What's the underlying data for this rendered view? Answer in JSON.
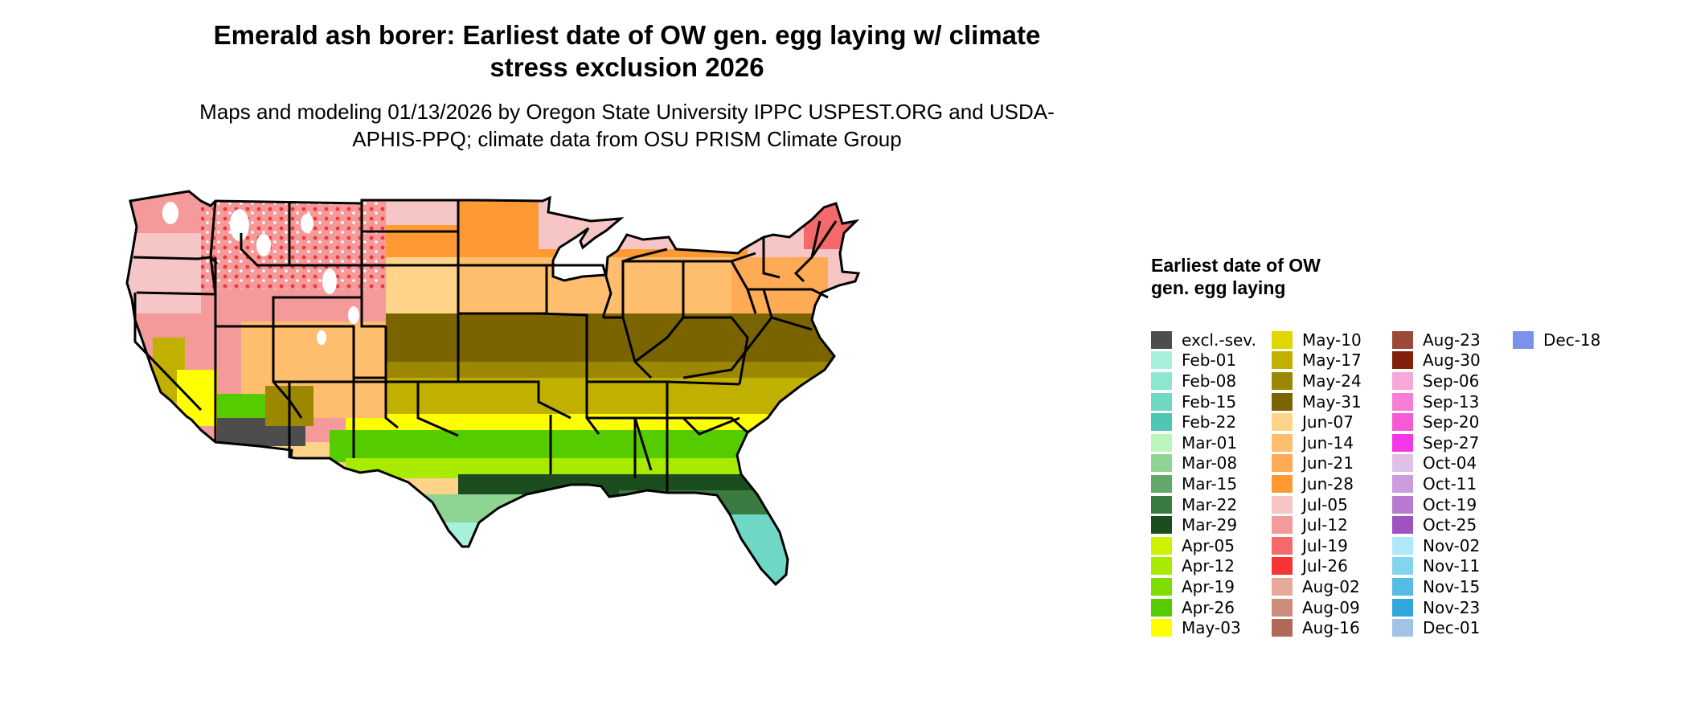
{
  "title": "Emerald ash borer: Earliest date of OW gen. egg laying w/ climate stress exclusion 2026",
  "subtitle": "Maps and modeling 01/13/2026 by Oregon State University IPPC USPEST.ORG and USDA-APHIS-PPQ; climate data from OSU PRISM Climate Group",
  "map": {
    "region": "Conterminous United States",
    "legend_title": "Earliest date of OW gen. egg laying",
    "legend": [
      {
        "label": "excl.-sev.",
        "color": "#4d4d4d"
      },
      {
        "label": "Feb-01",
        "color": "#a6f0dc"
      },
      {
        "label": "Feb-08",
        "color": "#8ee6d0"
      },
      {
        "label": "Feb-15",
        "color": "#6fd8c4"
      },
      {
        "label": "Feb-22",
        "color": "#4ec6b4"
      },
      {
        "label": "Mar-01",
        "color": "#b8f6bc"
      },
      {
        "label": "Mar-08",
        "color": "#8ed492"
      },
      {
        "label": "Mar-15",
        "color": "#62a868"
      },
      {
        "label": "Mar-22",
        "color": "#3b7a40"
      },
      {
        "label": "Mar-29",
        "color": "#1b4d1e"
      },
      {
        "label": "Apr-05",
        "color": "#ccf200"
      },
      {
        "label": "Apr-12",
        "color": "#a8ea00"
      },
      {
        "label": "Apr-19",
        "color": "#7ddc00"
      },
      {
        "label": "Apr-26",
        "color": "#55cc00"
      },
      {
        "label": "May-03",
        "color": "#ffff00"
      },
      {
        "label": "May-10",
        "color": "#e0d600"
      },
      {
        "label": "May-17",
        "color": "#c2b000"
      },
      {
        "label": "May-24",
        "color": "#9c8800"
      },
      {
        "label": "May-31",
        "color": "#7a6400"
      },
      {
        "label": "Jun-07",
        "color": "#ffd48a"
      },
      {
        "label": "Jun-14",
        "color": "#ffbe6e"
      },
      {
        "label": "Jun-21",
        "color": "#ffaa55"
      },
      {
        "label": "Jun-28",
        "color": "#ff9933"
      },
      {
        "label": "Jul-05",
        "color": "#f6c6c6"
      },
      {
        "label": "Jul-12",
        "color": "#f49a9a"
      },
      {
        "label": "Jul-19",
        "color": "#f46a6a"
      },
      {
        "label": "Jul-26",
        "color": "#f53535"
      },
      {
        "label": "Aug-02",
        "color": "#e6a898"
      },
      {
        "label": "Aug-09",
        "color": "#cc8c7c"
      },
      {
        "label": "Aug-16",
        "color": "#b06a5a"
      },
      {
        "label": "Aug-23",
        "color": "#9a4a36"
      },
      {
        "label": "Aug-30",
        "color": "#82200c"
      },
      {
        "label": "Sep-06",
        "color": "#f7a8d8"
      },
      {
        "label": "Sep-13",
        "color": "#f77ed6"
      },
      {
        "label": "Sep-20",
        "color": "#f75ad6"
      },
      {
        "label": "Sep-27",
        "color": "#f535e8"
      },
      {
        "label": "Oct-04",
        "color": "#e0c0e6"
      },
      {
        "label": "Oct-11",
        "color": "#cc9cdc"
      },
      {
        "label": "Oct-19",
        "color": "#b87ad0"
      },
      {
        "label": "Oct-25",
        "color": "#a052c0"
      },
      {
        "label": "Nov-02",
        "color": "#aee8fa"
      },
      {
        "label": "Nov-11",
        "color": "#84d4f0"
      },
      {
        "label": "Nov-15",
        "color": "#55bce6"
      },
      {
        "label": "Nov-23",
        "color": "#30a6dc"
      },
      {
        "label": "Dec-01",
        "color": "#a2c2e6"
      },
      {
        "label": "Dec-18",
        "color": "#7a92ea"
      }
    ]
  }
}
